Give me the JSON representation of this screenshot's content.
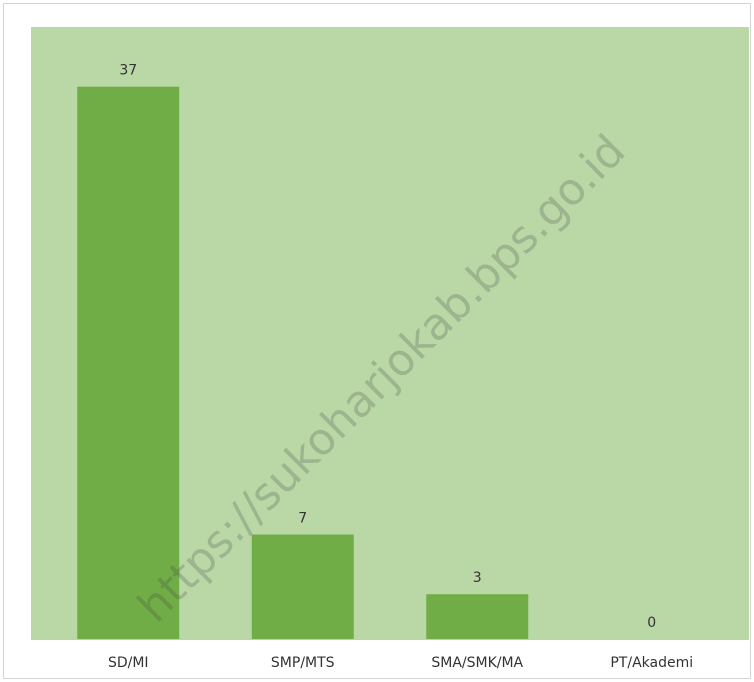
{
  "chart_data": {
    "type": "bar",
    "categories": [
      "SD/MI",
      "SMP/MTS",
      "SMA/SMK/MA",
      "PT/Akademi"
    ],
    "values": [
      37,
      7,
      3,
      0
    ],
    "data_labels": [
      "37",
      "7",
      "3",
      "0"
    ],
    "title": "",
    "xlabel": "",
    "ylabel": "",
    "ylim": [
      0,
      41
    ],
    "grid": false,
    "legend": "none",
    "colors": {
      "bar": "#70ad47",
      "plot_area": "#b9d8a6"
    }
  },
  "watermark": "https://sukoharjokab.bps.go.id"
}
